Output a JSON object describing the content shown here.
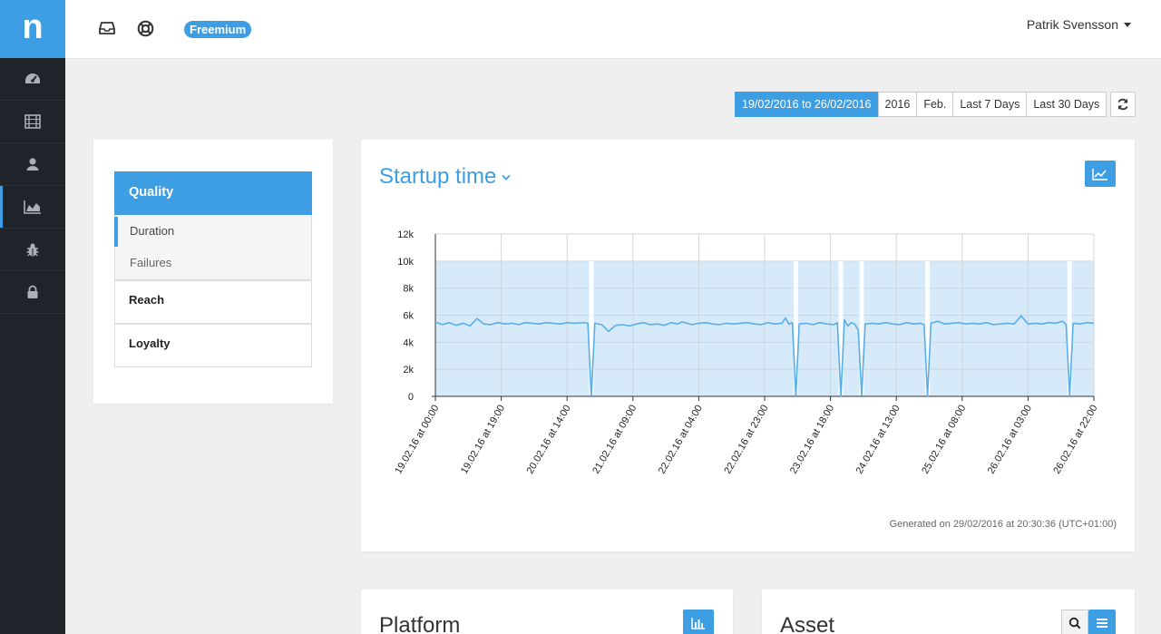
{
  "brand": {
    "logo_letter": "n",
    "accent": "#3d9ee3"
  },
  "sidebar": {
    "items": [
      {
        "icon": "dashboard-icon"
      },
      {
        "icon": "film-icon"
      },
      {
        "icon": "user-icon"
      },
      {
        "icon": "area-chart-icon",
        "active": true
      },
      {
        "icon": "bug-icon"
      },
      {
        "icon": "lock-icon"
      }
    ]
  },
  "topbar": {
    "inbox_icon": "inbox-icon",
    "help_icon": "life-ring-icon",
    "plan_badge": "Freemium",
    "user_name": "Patrik Svensson"
  },
  "date_range": {
    "active": "19/02/2016 to 26/02/2016",
    "options": [
      "2016",
      "Feb.",
      "Last 7 Days",
      "Last 30 Days"
    ],
    "refresh_icon": "refresh-icon"
  },
  "menu": {
    "quality": "Quality",
    "sub_items": [
      "Duration",
      "Failures"
    ],
    "reach": "Reach",
    "loyalty": "Loyalty"
  },
  "startup_card": {
    "title": "Startup time",
    "generated": "Generated on 29/02/2016 at 20:30:36 (UTC+01:00)"
  },
  "chart_data": {
    "type": "line",
    "title": "Startup time",
    "y_ticks": [
      "0",
      "2k",
      "4k",
      "6k",
      "8k",
      "10k",
      "12k"
    ],
    "ylim": [
      0,
      12000
    ],
    "x_tick_labels": [
      "19.02.16 at 00:00",
      "19.02.16 at 19:00",
      "20.02.16 at 14:00",
      "21.02.16 at 09:00",
      "22.02.16 at 04:00",
      "22.02.16 at 23:00",
      "23.02.16 at 18:00",
      "24.02.16 at 13:00",
      "25.02.16 at 08:00",
      "26.02.16 at 03:00",
      "26.02.16 at 22:00"
    ],
    "x_hours_range": [
      0,
      190
    ],
    "series": [
      {
        "points": [
          [
            0,
            5500
          ],
          [
            2,
            5300
          ],
          [
            4,
            5450
          ],
          [
            6,
            5250
          ],
          [
            8,
            5400
          ],
          [
            10,
            5200
          ],
          [
            12,
            5750
          ],
          [
            14,
            5350
          ],
          [
            16,
            5300
          ],
          [
            18,
            5450
          ],
          [
            20,
            5350
          ],
          [
            22,
            5400
          ],
          [
            24,
            5300
          ],
          [
            26,
            5450
          ],
          [
            28,
            5400
          ],
          [
            30,
            5350
          ],
          [
            32,
            5450
          ],
          [
            34,
            5400
          ],
          [
            36,
            5350
          ],
          [
            38,
            5450
          ],
          [
            40,
            5400
          ],
          [
            43,
            5450
          ],
          [
            44,
            5400
          ],
          [
            45,
            50
          ],
          [
            46,
            5400
          ],
          [
            48,
            5300
          ],
          [
            50,
            4800
          ],
          [
            52,
            5250
          ],
          [
            54,
            5300
          ],
          [
            56,
            5200
          ],
          [
            58,
            5350
          ],
          [
            60,
            5450
          ],
          [
            62,
            5300
          ],
          [
            64,
            5350
          ],
          [
            66,
            5250
          ],
          [
            68,
            5450
          ],
          [
            70,
            5350
          ],
          [
            71,
            5500
          ],
          [
            72,
            5450
          ],
          [
            74,
            5300
          ],
          [
            76,
            5400
          ],
          [
            78,
            5450
          ],
          [
            80,
            5350
          ],
          [
            82,
            5300
          ],
          [
            84,
            5400
          ],
          [
            86,
            5350
          ],
          [
            88,
            5400
          ],
          [
            90,
            5450
          ],
          [
            92,
            5350
          ],
          [
            94,
            5300
          ],
          [
            96,
            5450
          ],
          [
            98,
            5350
          ],
          [
            100,
            5400
          ],
          [
            101,
            5800
          ],
          [
            102,
            5350
          ],
          [
            103,
            5450
          ],
          [
            104,
            30
          ],
          [
            105,
            5350
          ],
          [
            107,
            5400
          ],
          [
            109,
            5300
          ],
          [
            111,
            5450
          ],
          [
            113,
            5350
          ],
          [
            115,
            5300
          ],
          [
            116,
            5450
          ],
          [
            117,
            20
          ],
          [
            118,
            5650
          ],
          [
            119,
            5200
          ],
          [
            120,
            5450
          ],
          [
            121,
            5350
          ],
          [
            122,
            4900
          ],
          [
            123,
            80
          ],
          [
            124,
            5350
          ],
          [
            126,
            5400
          ],
          [
            128,
            5350
          ],
          [
            130,
            5450
          ],
          [
            132,
            5350
          ],
          [
            134,
            5300
          ],
          [
            136,
            5450
          ],
          [
            138,
            5350
          ],
          [
            140,
            5400
          ],
          [
            141,
            5300
          ],
          [
            142,
            20
          ],
          [
            143,
            5400
          ],
          [
            145,
            5550
          ],
          [
            147,
            5350
          ],
          [
            149,
            5400
          ],
          [
            151,
            5450
          ],
          [
            153,
            5350
          ],
          [
            155,
            5400
          ],
          [
            157,
            5350
          ],
          [
            159,
            5450
          ],
          [
            161,
            5300
          ],
          [
            163,
            5350
          ],
          [
            165,
            5400
          ],
          [
            167,
            5350
          ],
          [
            169,
            5950
          ],
          [
            171,
            5350
          ],
          [
            173,
            5400
          ],
          [
            175,
            5350
          ],
          [
            177,
            5450
          ],
          [
            179,
            5400
          ],
          [
            181,
            5550
          ],
          [
            182,
            5300
          ],
          [
            183,
            30
          ],
          [
            184,
            5400
          ],
          [
            186,
            5350
          ],
          [
            188,
            5450
          ],
          [
            190,
            5400
          ]
        ]
      }
    ],
    "band": {
      "upper": 10000,
      "lower": 0
    }
  },
  "platform_card": {
    "title": "Platform",
    "icon": "bar-chart-icon"
  },
  "asset_card": {
    "title": "Asset",
    "search_icon": "search-icon",
    "list_icon": "list-icon"
  }
}
